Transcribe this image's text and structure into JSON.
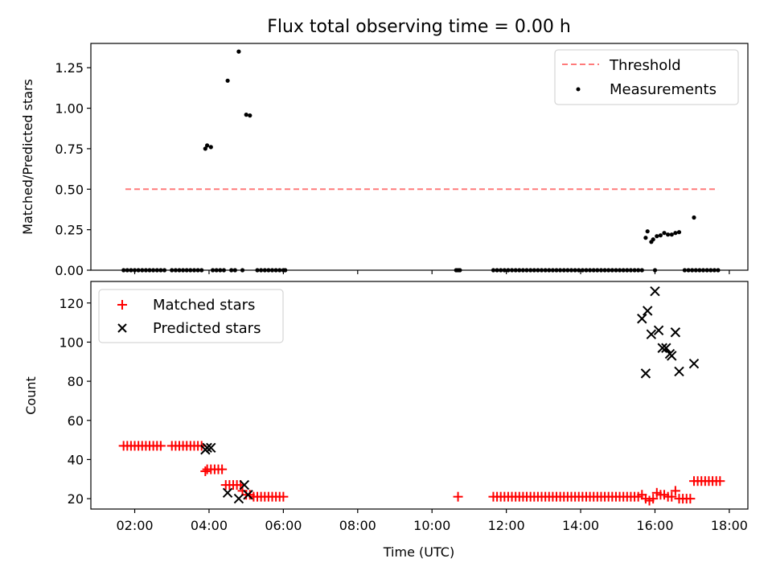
{
  "chart_data": [
    {
      "type": "scatter",
      "title": "Flux total observing time = 0.00 h",
      "xlabel": "",
      "ylabel": "Matched/Predicted stars",
      "xlim": [
        0.82,
        18.5
      ],
      "ylim": [
        0,
        1.4
      ],
      "yticks": [
        0.0,
        0.25,
        0.5,
        0.75,
        1.0,
        1.25
      ],
      "ytick_labels": [
        "0.00",
        "0.25",
        "0.50",
        "0.75",
        "1.00",
        "1.25"
      ],
      "xticks": [
        2,
        4,
        6,
        8,
        10,
        12,
        14,
        16,
        18
      ],
      "legend_position": "top-right",
      "threshold": {
        "name": "Threshold",
        "value": 0.5,
        "x_range": [
          1.75,
          17.7
        ],
        "color": "#ff7a7a"
      },
      "series": [
        {
          "name": "Measurements",
          "color": "#000000",
          "points": [
            [
              3.9,
              0.75
            ],
            [
              3.95,
              0.77
            ],
            [
              4.05,
              0.76
            ],
            [
              4.5,
              1.17
            ],
            [
              4.8,
              1.35
            ],
            [
              5.0,
              0.96
            ],
            [
              5.1,
              0.955
            ],
            [
              15.75,
              0.2
            ],
            [
              15.8,
              0.24
            ],
            [
              15.9,
              0.175
            ],
            [
              15.95,
              0.19
            ],
            [
              16.05,
              0.21
            ],
            [
              16.15,
              0.215
            ],
            [
              16.25,
              0.23
            ],
            [
              16.35,
              0.22
            ],
            [
              16.45,
              0.22
            ],
            [
              16.55,
              0.23
            ],
            [
              16.65,
              0.235
            ],
            [
              17.05,
              0.325
            ],
            [
              1.7,
              0
            ],
            [
              1.8,
              0
            ],
            [
              1.9,
              0
            ],
            [
              2.0,
              0
            ],
            [
              2.1,
              0
            ],
            [
              2.2,
              0
            ],
            [
              2.3,
              0
            ],
            [
              2.4,
              0
            ],
            [
              2.5,
              0
            ],
            [
              2.6,
              0
            ],
            [
              2.7,
              0
            ],
            [
              2.8,
              0
            ],
            [
              3.0,
              0
            ],
            [
              3.1,
              0
            ],
            [
              3.2,
              0
            ],
            [
              3.3,
              0
            ],
            [
              3.4,
              0
            ],
            [
              3.5,
              0
            ],
            [
              3.6,
              0
            ],
            [
              3.7,
              0
            ],
            [
              3.8,
              0
            ],
            [
              4.1,
              0
            ],
            [
              4.2,
              0
            ],
            [
              4.3,
              0
            ],
            [
              4.4,
              0
            ],
            [
              4.6,
              0
            ],
            [
              4.7,
              0
            ],
            [
              4.9,
              0
            ],
            [
              5.3,
              0
            ],
            [
              5.4,
              0
            ],
            [
              5.5,
              0
            ],
            [
              5.6,
              0
            ],
            [
              5.7,
              0
            ],
            [
              5.8,
              0
            ],
            [
              5.9,
              0
            ],
            [
              6.0,
              0
            ],
            [
              6.05,
              0
            ],
            [
              10.65,
              0
            ],
            [
              10.7,
              0
            ],
            [
              10.75,
              0
            ],
            [
              11.65,
              0
            ],
            [
              11.75,
              0
            ],
            [
              11.85,
              0
            ],
            [
              11.95,
              0
            ],
            [
              12.05,
              0
            ],
            [
              12.15,
              0
            ],
            [
              12.25,
              0
            ],
            [
              12.35,
              0
            ],
            [
              12.45,
              0
            ],
            [
              12.55,
              0
            ],
            [
              12.65,
              0
            ],
            [
              12.75,
              0
            ],
            [
              12.85,
              0
            ],
            [
              12.95,
              0
            ],
            [
              13.05,
              0
            ],
            [
              13.15,
              0
            ],
            [
              13.25,
              0
            ],
            [
              13.35,
              0
            ],
            [
              13.45,
              0
            ],
            [
              13.55,
              0
            ],
            [
              13.65,
              0
            ],
            [
              13.75,
              0
            ],
            [
              13.85,
              0
            ],
            [
              13.95,
              0
            ],
            [
              14.05,
              0
            ],
            [
              14.15,
              0
            ],
            [
              14.25,
              0
            ],
            [
              14.35,
              0
            ],
            [
              14.45,
              0
            ],
            [
              14.55,
              0
            ],
            [
              14.65,
              0
            ],
            [
              14.75,
              0
            ],
            [
              14.85,
              0
            ],
            [
              14.95,
              0
            ],
            [
              15.05,
              0
            ],
            [
              15.15,
              0
            ],
            [
              15.25,
              0
            ],
            [
              15.35,
              0
            ],
            [
              15.45,
              0
            ],
            [
              15.55,
              0
            ],
            [
              15.65,
              0
            ],
            [
              16.0,
              0
            ],
            [
              16.8,
              0
            ],
            [
              16.9,
              0
            ],
            [
              17.0,
              0
            ],
            [
              17.1,
              0
            ],
            [
              17.2,
              0
            ],
            [
              17.3,
              0
            ],
            [
              17.4,
              0
            ],
            [
              17.5,
              0
            ],
            [
              17.6,
              0
            ],
            [
              17.7,
              0
            ]
          ]
        }
      ]
    },
    {
      "type": "scatter",
      "title": "",
      "xlabel": "Time (UTC)",
      "ylabel": "Count",
      "xlim": [
        0.82,
        18.5
      ],
      "ylim": [
        14.7,
        131
      ],
      "yticks": [
        20,
        40,
        60,
        80,
        100,
        120
      ],
      "xticks": [
        2,
        4,
        6,
        8,
        10,
        12,
        14,
        16,
        18
      ],
      "xtick_labels": [
        "02:00",
        "04:00",
        "06:00",
        "08:00",
        "10:00",
        "12:00",
        "14:00",
        "16:00",
        "18:00"
      ],
      "legend_position": "top-left",
      "series": [
        {
          "name": "Matched stars",
          "marker": "plus",
          "color": "#ff0000",
          "points": [
            [
              1.7,
              47
            ],
            [
              1.8,
              47
            ],
            [
              1.9,
              47
            ],
            [
              2.0,
              47
            ],
            [
              2.1,
              47
            ],
            [
              2.2,
              47
            ],
            [
              2.3,
              47
            ],
            [
              2.4,
              47
            ],
            [
              2.5,
              47
            ],
            [
              2.6,
              47
            ],
            [
              2.7,
              47
            ],
            [
              3.0,
              47
            ],
            [
              3.1,
              47
            ],
            [
              3.2,
              47
            ],
            [
              3.3,
              47
            ],
            [
              3.4,
              47
            ],
            [
              3.5,
              47
            ],
            [
              3.6,
              47
            ],
            [
              3.7,
              47
            ],
            [
              3.8,
              47
            ],
            [
              3.9,
              34
            ],
            [
              3.95,
              35
            ],
            [
              4.05,
              35
            ],
            [
              4.15,
              35
            ],
            [
              4.25,
              35
            ],
            [
              4.35,
              35
            ],
            [
              4.45,
              27
            ],
            [
              4.55,
              27
            ],
            [
              4.65,
              27
            ],
            [
              4.75,
              27
            ],
            [
              4.85,
              27
            ],
            [
              4.9,
              24
            ],
            [
              5.0,
              22
            ],
            [
              5.1,
              22
            ],
            [
              5.2,
              21
            ],
            [
              5.3,
              21
            ],
            [
              5.4,
              21
            ],
            [
              5.5,
              21
            ],
            [
              5.6,
              21
            ],
            [
              5.7,
              21
            ],
            [
              5.8,
              21
            ],
            [
              5.9,
              21
            ],
            [
              6.0,
              21
            ],
            [
              10.7,
              21
            ],
            [
              11.65,
              21
            ],
            [
              11.75,
              21
            ],
            [
              11.85,
              21
            ],
            [
              11.95,
              21
            ],
            [
              12.05,
              21
            ],
            [
              12.15,
              21
            ],
            [
              12.25,
              21
            ],
            [
              12.35,
              21
            ],
            [
              12.45,
              21
            ],
            [
              12.55,
              21
            ],
            [
              12.65,
              21
            ],
            [
              12.75,
              21
            ],
            [
              12.85,
              21
            ],
            [
              12.95,
              21
            ],
            [
              13.05,
              21
            ],
            [
              13.15,
              21
            ],
            [
              13.25,
              21
            ],
            [
              13.35,
              21
            ],
            [
              13.45,
              21
            ],
            [
              13.55,
              21
            ],
            [
              13.65,
              21
            ],
            [
              13.75,
              21
            ],
            [
              13.85,
              21
            ],
            [
              13.95,
              21
            ],
            [
              14.05,
              21
            ],
            [
              14.15,
              21
            ],
            [
              14.25,
              21
            ],
            [
              14.35,
              21
            ],
            [
              14.45,
              21
            ],
            [
              14.55,
              21
            ],
            [
              14.65,
              21
            ],
            [
              14.75,
              21
            ],
            [
              14.85,
              21
            ],
            [
              14.95,
              21
            ],
            [
              15.05,
              21
            ],
            [
              15.15,
              21
            ],
            [
              15.25,
              21
            ],
            [
              15.35,
              21
            ],
            [
              15.45,
              21
            ],
            [
              15.55,
              21
            ],
            [
              15.65,
              22
            ],
            [
              15.75,
              20
            ],
            [
              15.85,
              19
            ],
            [
              15.95,
              20
            ],
            [
              16.05,
              23
            ],
            [
              16.15,
              22
            ],
            [
              16.25,
              22
            ],
            [
              16.35,
              21
            ],
            [
              16.45,
              21
            ],
            [
              16.55,
              24
            ],
            [
              16.65,
              20
            ],
            [
              16.75,
              20
            ],
            [
              16.85,
              20
            ],
            [
              16.95,
              20
            ],
            [
              17.05,
              29
            ],
            [
              17.15,
              29
            ],
            [
              17.25,
              29
            ],
            [
              17.35,
              29
            ],
            [
              17.45,
              29
            ],
            [
              17.55,
              29
            ],
            [
              17.65,
              29
            ],
            [
              17.75,
              29
            ]
          ]
        },
        {
          "name": "Predicted stars",
          "marker": "x",
          "color": "#000000",
          "points": [
            [
              3.9,
              45
            ],
            [
              3.95,
              46
            ],
            [
              4.05,
              46
            ],
            [
              4.5,
              23
            ],
            [
              4.8,
              20
            ],
            [
              4.95,
              27
            ],
            [
              5.05,
              22
            ],
            [
              15.65,
              112
            ],
            [
              15.75,
              84
            ],
            [
              15.8,
              116
            ],
            [
              15.9,
              104
            ],
            [
              16.0,
              126
            ],
            [
              16.1,
              106
            ],
            [
              16.2,
              97
            ],
            [
              16.3,
              97
            ],
            [
              16.4,
              94
            ],
            [
              16.45,
              93
            ],
            [
              16.55,
              105
            ],
            [
              16.65,
              85
            ],
            [
              17.05,
              89
            ]
          ]
        }
      ]
    }
  ]
}
